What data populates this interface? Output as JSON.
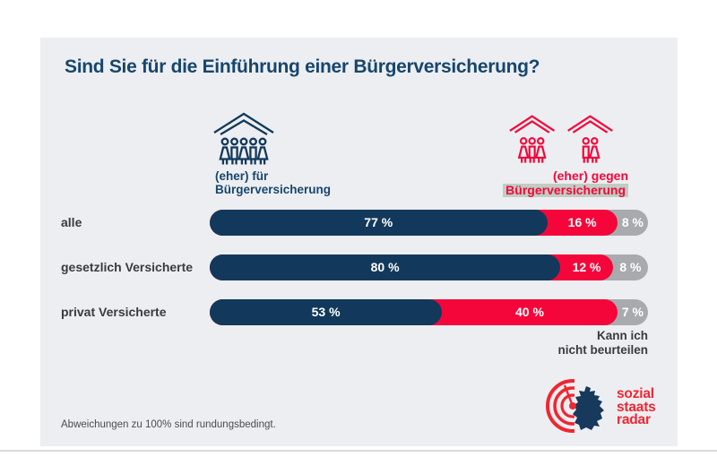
{
  "card": {
    "title": "Sind Sie für die Einführung einer Bürgerversicherung?",
    "footnote": "Abweichungen zu 100% sind rundungsbedingt."
  },
  "legend": {
    "pro": {
      "line1": "(eher) für",
      "line2": "Bürgerversicherung"
    },
    "contra": {
      "line1": "(eher) gegen",
      "line2": "Bürgerversicherung"
    },
    "undecided": {
      "line1": "Kann ich",
      "line2": "nicht beurteilen"
    }
  },
  "logo": {
    "line1": "sozial",
    "line2": "staats",
    "line3": "radar"
  },
  "colors": {
    "pro": "#12395b",
    "contra": "#f5063a",
    "undecided": "#a8aaad",
    "card_bg": "#edeef1",
    "title_navy": "#16466e",
    "logo_red": "#ee2733",
    "highlight": "#c0cdc3"
  },
  "chart_data": {
    "type": "bar",
    "orientation": "horizontal",
    "stacked": true,
    "title": "Sind Sie für die Einführung einer Bürgerversicherung?",
    "unit": "%",
    "categories": [
      "alle",
      "gesetzlich Versicherte",
      "privat Versicherte"
    ],
    "series": [
      {
        "name": "(eher) für Bürgerversicherung",
        "color": "#12395b",
        "values": [
          77,
          80,
          53
        ]
      },
      {
        "name": "(eher) gegen Bürgerversicherung",
        "color": "#f5063a",
        "values": [
          16,
          12,
          40
        ]
      },
      {
        "name": "Kann ich nicht beurteilen",
        "color": "#a8aaad",
        "values": [
          8,
          8,
          7
        ]
      }
    ],
    "value_label_format": "{v} %",
    "xlim": [
      0,
      100
    ],
    "grid": false,
    "legend_position": "top",
    "note": "Abweichungen zu 100% sind rundungsbedingt."
  }
}
